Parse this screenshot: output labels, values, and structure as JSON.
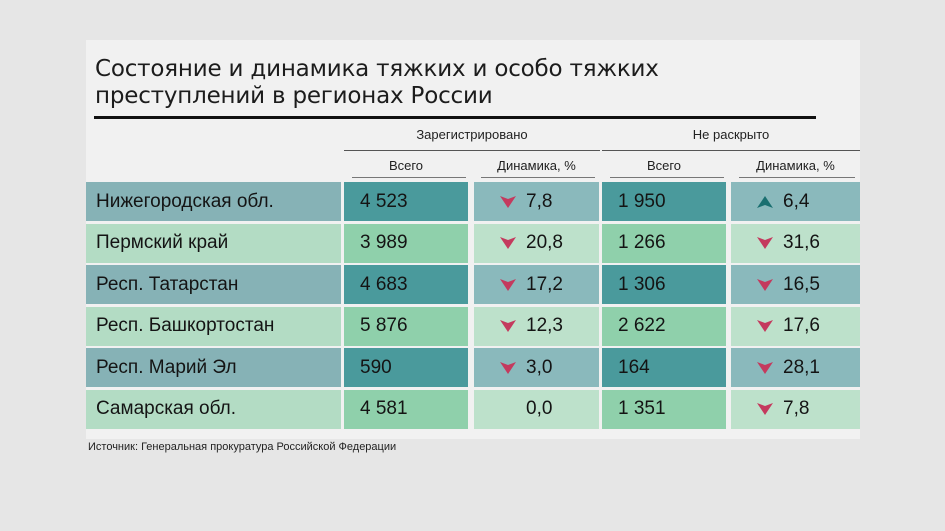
{
  "title": "Состояние и динамика тяжких и особо тяжких преступлений в регионах России",
  "columns": {
    "group_registered": "Зарегистрировано",
    "group_unsolved": "Не раскрыто",
    "total": "Всего",
    "dynamics": "Динамика, %"
  },
  "colors": {
    "dark_row_name": "#86b2b6",
    "dark_row_cell": "#4a9a9c",
    "dark_row_light": "#8ab9bc",
    "light_row_name": "#b3dcc4",
    "light_row_cell": "#8fd0ab",
    "light_row_light": "#bde1cb",
    "arrow_down": "#c43a5e",
    "arrow_up": "#1a6f70"
  },
  "rows": [
    {
      "region": "Нижегородская обл.",
      "reg_total": "4 523",
      "reg_dyn": "7,8",
      "reg_dir": "down",
      "nr_total": "1 950",
      "nr_dyn": "6,4",
      "nr_dir": "up"
    },
    {
      "region": "Пермский край",
      "reg_total": "3 989",
      "reg_dyn": "20,8",
      "reg_dir": "down",
      "nr_total": "1 266",
      "nr_dyn": "31,6",
      "nr_dir": "down"
    },
    {
      "region": "Респ. Татарстан",
      "reg_total": "4 683",
      "reg_dyn": "17,2",
      "reg_dir": "down",
      "nr_total": "1 306",
      "nr_dyn": "16,5",
      "nr_dir": "down"
    },
    {
      "region": "Респ. Башкортостан",
      "reg_total": "5 876",
      "reg_dyn": "12,3",
      "reg_dir": "down",
      "nr_total": "2 622",
      "nr_dyn": "17,6",
      "nr_dir": "down"
    },
    {
      "region": "Респ. Марий Эл",
      "reg_total": "590",
      "reg_dyn": "3,0",
      "reg_dir": "down",
      "nr_total": "164",
      "nr_dyn": "28,1",
      "nr_dir": "down"
    },
    {
      "region": "Самарская обл.",
      "reg_total": "4 581",
      "reg_dyn": "0,0",
      "reg_dir": "none",
      "nr_total": "1 351",
      "nr_dyn": "7,8",
      "nr_dir": "down"
    }
  ],
  "source": "Источник: Генеральная прокуратура Российской Федерации"
}
